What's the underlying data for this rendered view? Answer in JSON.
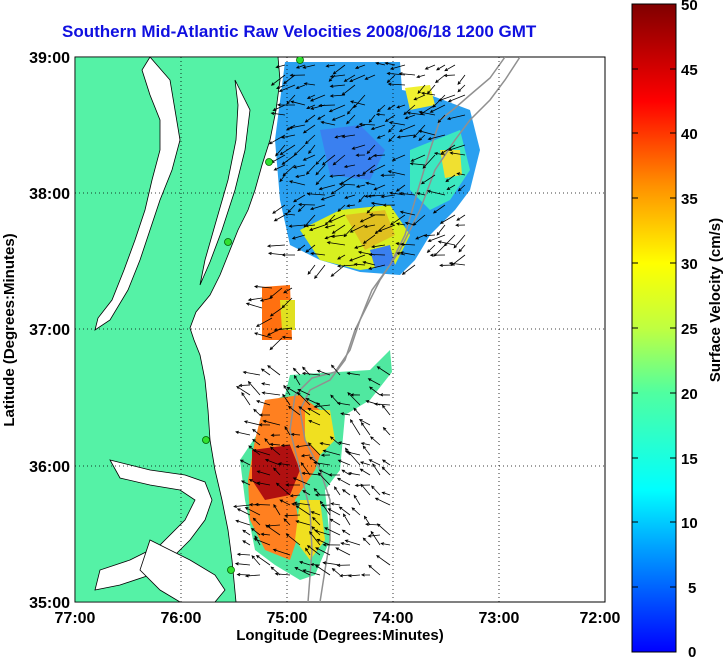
{
  "title": "Southern Mid-Atlantic Raw Velocities 2008/06/18 1200 GMT",
  "xlabel": "Longitude (Degrees:Minutes)",
  "ylabel": "Latitude (Degrees:Minutes)",
  "x_ticks": [
    "77:00",
    "76:00",
    "75:00",
    "74:00",
    "73:00",
    "72:00"
  ],
  "y_ticks": [
    "39:00",
    "38:00",
    "37:00",
    "36:00",
    "35:00"
  ],
  "colorbar": {
    "label": "Surface Velocity (cm/s)",
    "ticks": [
      "50",
      "45",
      "40",
      "35",
      "30",
      "25",
      "20",
      "15",
      "10",
      "5",
      "0"
    ]
  },
  "colors": {
    "land": "#55f2a6",
    "title": "#1010e0",
    "arrow": "#000000"
  },
  "chart_data": {
    "type": "map",
    "title": "Southern Mid-Atlantic Raw Velocities 2008/06/18 1200 GMT",
    "xlim": [
      -77,
      -72
    ],
    "ylim": [
      35,
      39
    ],
    "grid": true,
    "colorbar_range": [
      0,
      50
    ]
  }
}
